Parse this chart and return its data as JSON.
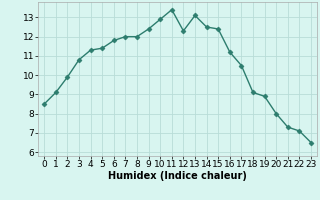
{
  "x": [
    0,
    1,
    2,
    3,
    4,
    5,
    6,
    7,
    8,
    9,
    10,
    11,
    12,
    13,
    14,
    15,
    16,
    17,
    18,
    19,
    20,
    21,
    22,
    23
  ],
  "y": [
    8.5,
    9.1,
    9.9,
    10.8,
    11.3,
    11.4,
    11.8,
    12.0,
    12.0,
    12.4,
    12.9,
    13.4,
    12.3,
    13.1,
    12.5,
    12.4,
    11.2,
    10.5,
    9.1,
    8.9,
    8.0,
    7.3,
    7.1,
    6.5
  ],
  "line_color": "#2d7d6e",
  "marker": "D",
  "markersize": 2.5,
  "linewidth": 1.0,
  "xlabel": "Humidex (Indice chaleur)",
  "xlim": [
    -0.5,
    23.5
  ],
  "ylim": [
    5.8,
    13.8
  ],
  "yticks": [
    6,
    7,
    8,
    9,
    10,
    11,
    12,
    13
  ],
  "xticks": [
    0,
    1,
    2,
    3,
    4,
    5,
    6,
    7,
    8,
    9,
    10,
    11,
    12,
    13,
    14,
    15,
    16,
    17,
    18,
    19,
    20,
    21,
    22,
    23
  ],
  "bg_color": "#d8f5f0",
  "grid_color": "#b8ddd8",
  "label_fontsize": 7.0,
  "tick_fontsize": 6.5
}
